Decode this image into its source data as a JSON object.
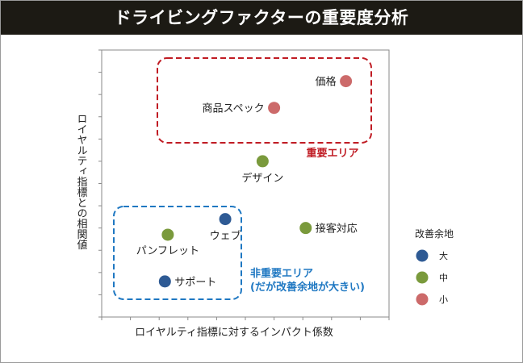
{
  "chart_data": {
    "type": "scatter",
    "title": "ドライビングファクターの重要度分析",
    "xlabel": "ロイヤルティ指標に対するインパクト係数",
    "ylabel": "ロイヤルティ指標との相関値",
    "xlim": [
      0,
      10
    ],
    "ylim": [
      0,
      12
    ],
    "grid": false,
    "legend": {
      "title": "改善余地",
      "position": "right",
      "items": [
        {
          "label": "大",
          "color": "#2e5a94"
        },
        {
          "label": "中",
          "color": "#7a9a3c"
        },
        {
          "label": "小",
          "color": "#cc6a6a"
        }
      ]
    },
    "points": [
      {
        "label": "価格",
        "x": 8.5,
        "y": 10.6,
        "level": "小",
        "label_side": "left"
      },
      {
        "label": "商品スペック",
        "x": 6.0,
        "y": 9.4,
        "level": "小",
        "label_side": "left"
      },
      {
        "label": "デザイン",
        "x": 5.6,
        "y": 7.0,
        "level": "中",
        "label_side": "below"
      },
      {
        "label": "接客対応",
        "x": 7.1,
        "y": 4.0,
        "level": "中",
        "label_side": "right"
      },
      {
        "label": "ウェブ",
        "x": 4.3,
        "y": 4.4,
        "level": "大",
        "label_side": "below"
      },
      {
        "label": "パンフレット",
        "x": 2.3,
        "y": 3.7,
        "level": "中",
        "label_side": "belowleft"
      },
      {
        "label": "サポート",
        "x": 2.2,
        "y": 1.6,
        "level": "大",
        "label_side": "right"
      }
    ],
    "regions": [
      {
        "label": "重要エリア",
        "color": "#c01c24"
      },
      {
        "label": "非重要エリア",
        "sublabel": "(だが改善余地が大きい)",
        "color": "#1f78c2"
      }
    ]
  }
}
